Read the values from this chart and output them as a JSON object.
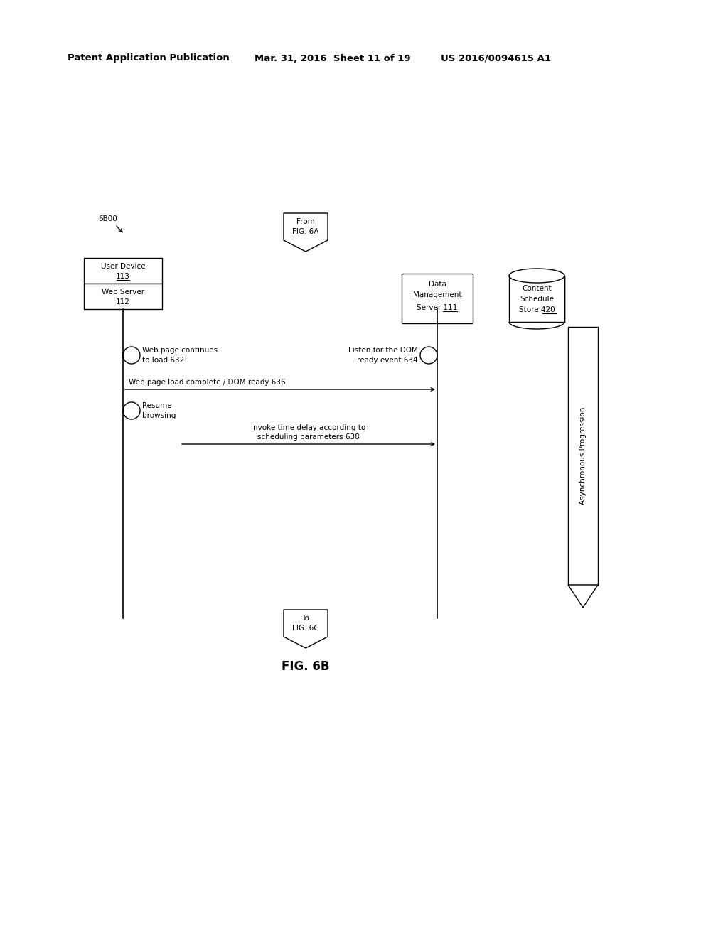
{
  "bg_color": "#ffffff",
  "header_text": "Patent Application Publication",
  "header_date": "Mar. 31, 2016  Sheet 11 of 19",
  "header_patent": "US 2016/0094615 A1",
  "fig_label": "FIG. 6B",
  "label_6B00": "6B00",
  "from_label": "From\nFIG. 6A",
  "to_label": "To\nFIG. 6C",
  "box1_line1": "User Device",
  "box1_line2": "113",
  "box2_line1": "Web Server",
  "box2_line2": "112",
  "box3_line1": "Data",
  "box3_line2": "Management",
  "box3_line3": "Server 111",
  "box3_underline": "111",
  "box4_line1": "Content",
  "box4_line2": "Schedule",
  "box4_line3": "Store 420",
  "box4_underline": "420",
  "msg1_text": "Web page continues\nto load 632",
  "msg2_text": "Listen for the DOM\nready event 634",
  "msg3_text": "Web page load complete / DOM ready 636",
  "msg4_text": "Resume\nbrowsing",
  "msg5_text": "Invoke time delay according to\nscheduling parameters 638",
  "async_text": "Asynchronous Progression",
  "header_fontsize": 9.5,
  "body_fontsize": 7.5,
  "fig_label_fontsize": 12
}
